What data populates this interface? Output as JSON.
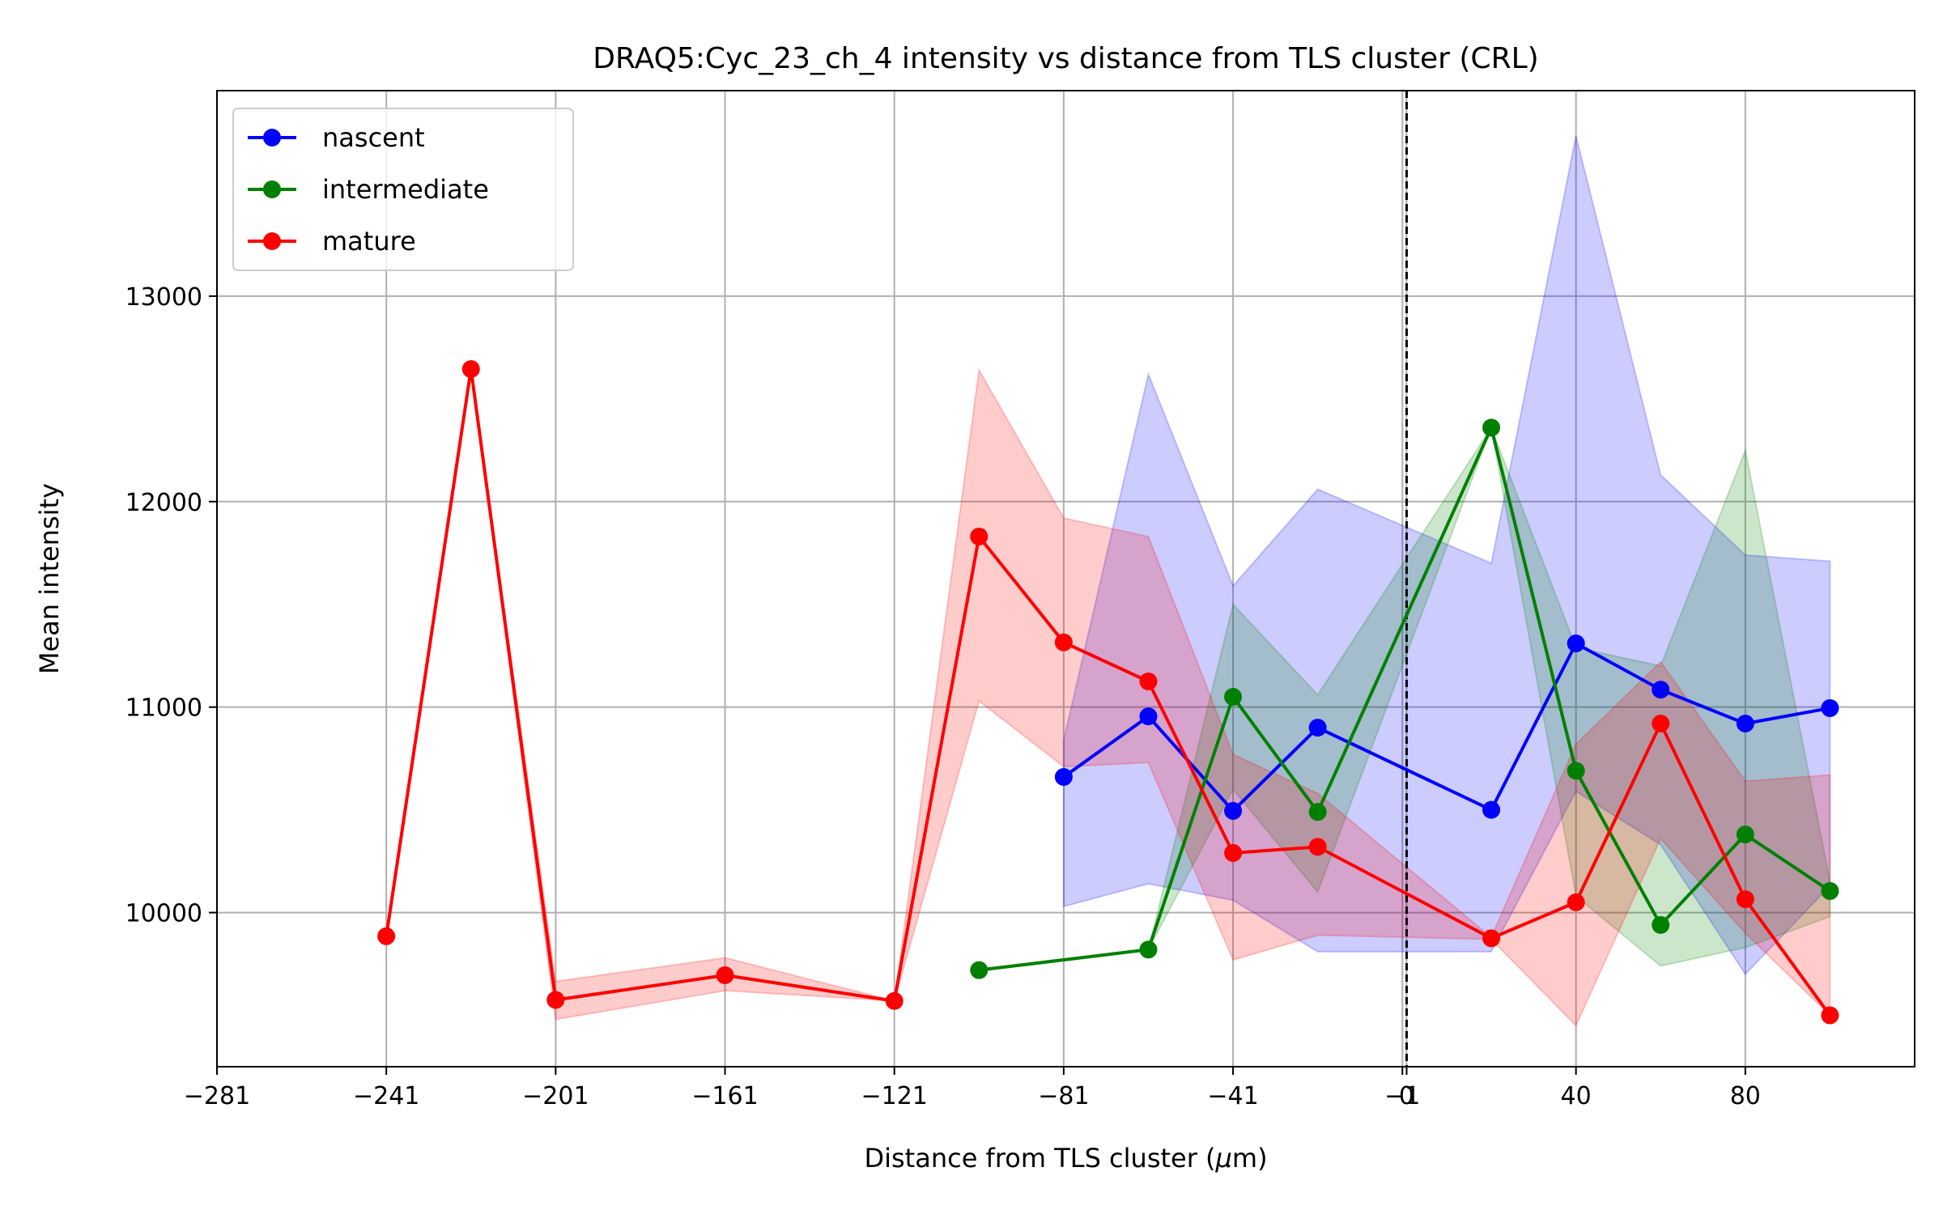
{
  "chart_data": {
    "type": "line",
    "title": "DRAQ5:Cyc_23_ch_4 intensity vs distance from TLS cluster (CRL)",
    "xlabel": "Distance from TLS cluster (",
    "xlabel_mu": "μ",
    "xlabel_unit": "m)",
    "ylabel": "Mean intensity",
    "xlim": [
      -281,
      120
    ],
    "ylim": [
      9250,
      14000
    ],
    "xticks": [
      {
        "value": -281,
        "label": "−281"
      },
      {
        "value": -241,
        "label": "−241"
      },
      {
        "value": -201,
        "label": "−201"
      },
      {
        "value": -161,
        "label": "−161"
      },
      {
        "value": -121,
        "label": "−121"
      },
      {
        "value": -81,
        "label": "−81"
      },
      {
        "value": -41,
        "label": "−41"
      },
      {
        "value": -1,
        "label": "−1"
      },
      {
        "value": 0,
        "label": "0"
      },
      {
        "value": 40,
        "label": "40"
      },
      {
        "value": 80,
        "label": "80"
      }
    ],
    "yticks": [
      {
        "value": 10000,
        "label": "10000"
      },
      {
        "value": 11000,
        "label": "11000"
      },
      {
        "value": 12000,
        "label": "12000"
      },
      {
        "value": 13000,
        "label": "13000"
      }
    ],
    "grid": true,
    "legend_position": "upper-left",
    "reference_line_x": 0,
    "series": [
      {
        "name": "nascent",
        "color": "#0000ff",
        "x": [
          -81,
          -61,
          -41,
          -21,
          20,
          40,
          60,
          80,
          100
        ],
        "y": [
          10660,
          10955,
          10495,
          10900,
          10500,
          11310,
          11085,
          10920,
          10995
        ],
        "lower": [
          10030,
          10140,
          10060,
          9810,
          9810,
          10590,
          10330,
          9700,
          10130
        ],
        "upper": [
          10840,
          12620,
          11590,
          12060,
          11700,
          13780,
          12130,
          11740,
          11710
        ]
      },
      {
        "name": "intermediate",
        "color": "#008000",
        "x": [
          -101,
          -61,
          -41,
          -21,
          20,
          40,
          60,
          80,
          100
        ],
        "y": [
          9720,
          9820,
          11050,
          10490,
          12360,
          10690,
          9940,
          10380,
          10105
        ],
        "lower": [
          9720,
          9820,
          10600,
          10100,
          12360,
          10080,
          9740,
          9830,
          9980
        ],
        "upper": [
          9720,
          9820,
          11500,
          11060,
          12360,
          11290,
          11200,
          12250,
          10150
        ]
      },
      {
        "name": "mature",
        "color": "#ff0000",
        "x": [
          -241,
          -221,
          -201,
          -161,
          -121,
          -101,
          -81,
          -61,
          -41,
          -21,
          20,
          40,
          60,
          80,
          100
        ],
        "y": [
          9885,
          12645,
          9575,
          9695,
          9570,
          11830,
          11315,
          11125,
          10290,
          10320,
          9875,
          10050,
          10920,
          10065,
          9500
        ],
        "lower": [
          9885,
          12645,
          9480,
          9620,
          9570,
          11030,
          10710,
          10730,
          9770,
          9890,
          9870,
          9450,
          10360,
          9900,
          9500
        ],
        "upper": [
          9885,
          12645,
          9665,
          9780,
          9570,
          12640,
          11920,
          11830,
          10770,
          10580,
          9880,
          10820,
          11220,
          10640,
          10670
        ]
      }
    ]
  }
}
